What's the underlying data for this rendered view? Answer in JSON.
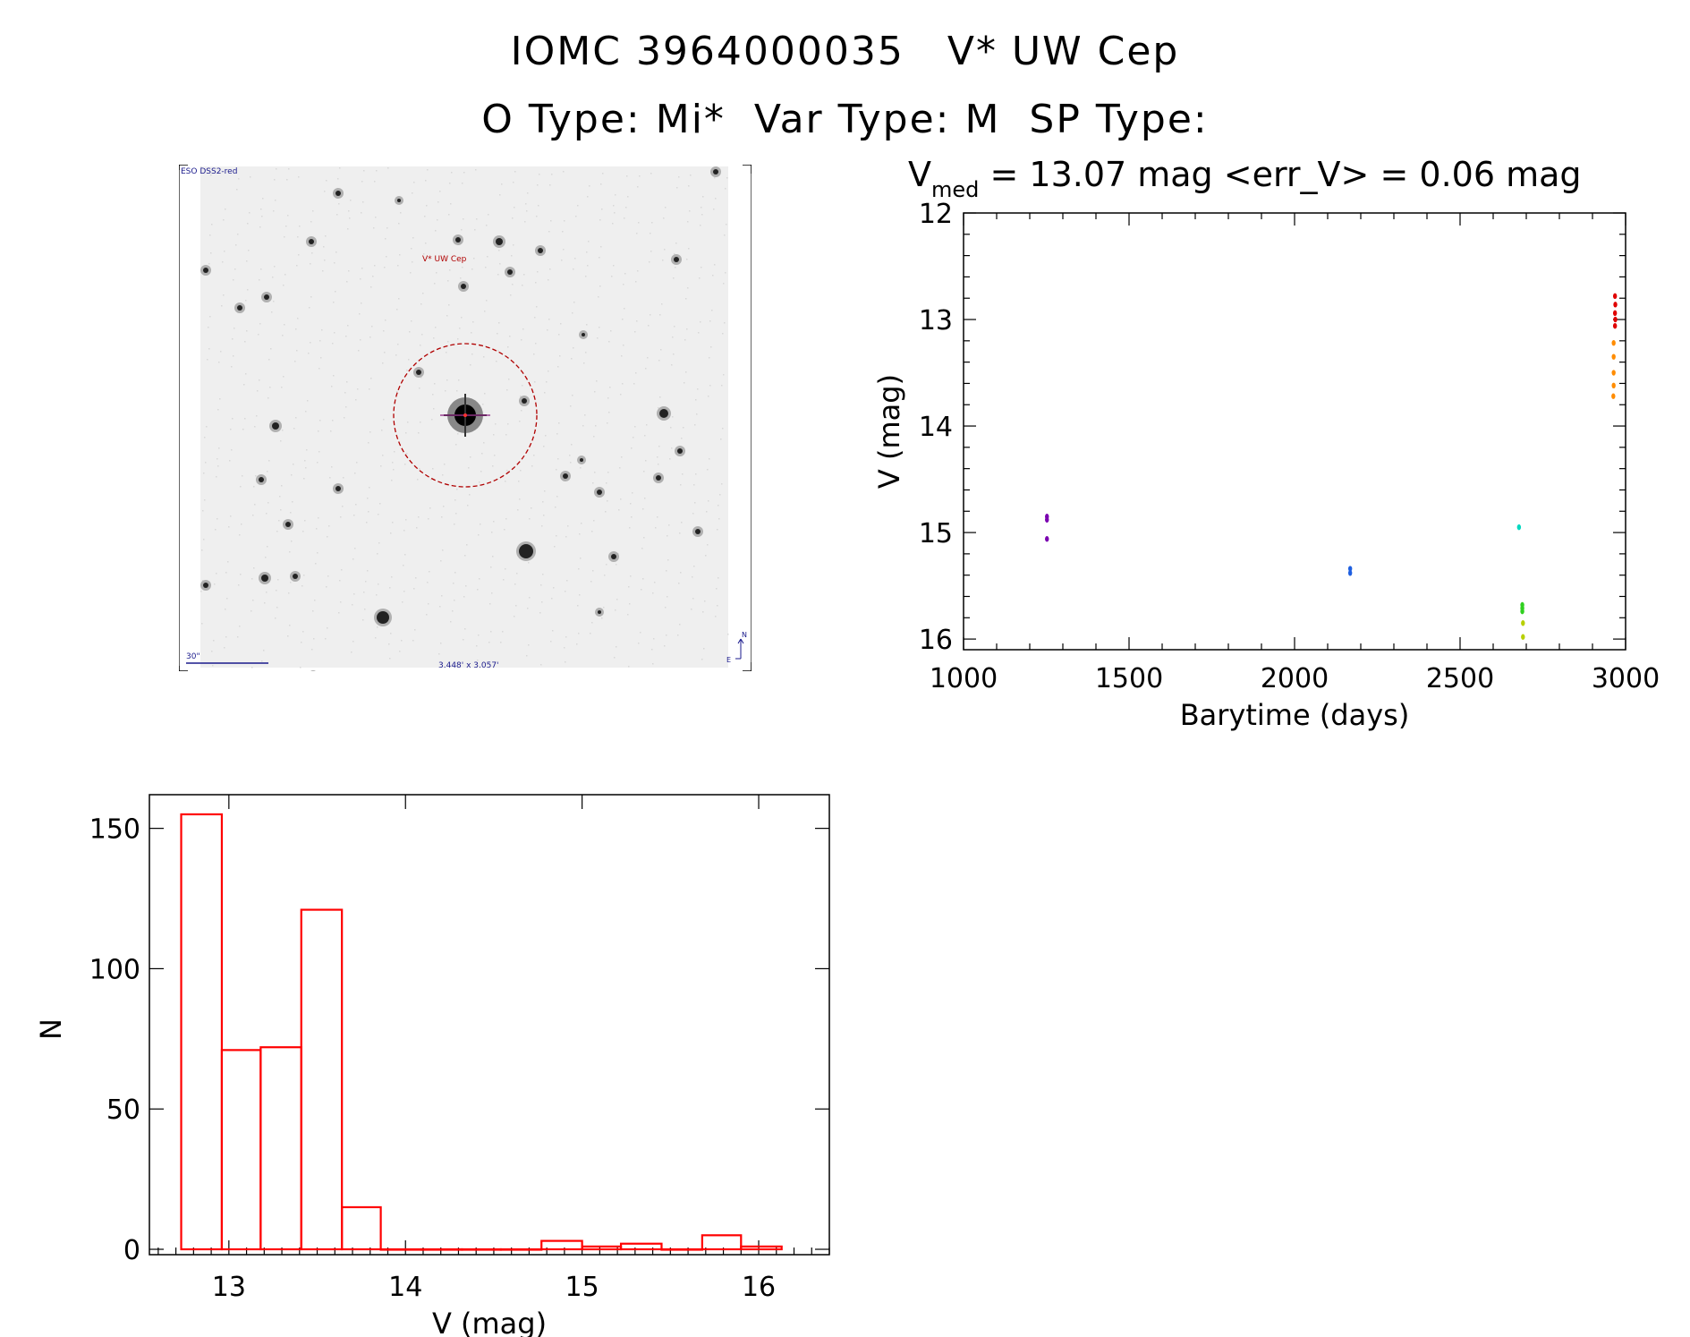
{
  "header": {
    "line1": "IOMC 3964000035   V* UW Cep",
    "line2": "O Type: Mi*  Var Type: M  SP Type:"
  },
  "thumbnail": {
    "survey_label": "ESO DSS2-red",
    "target_label": "V* UW Cep",
    "scale_label": "30\"",
    "fov_label": "3.448' x 3.057'",
    "compass_n": "N",
    "compass_e": "E",
    "circle_color": "#b00000"
  },
  "chart_data": [
    {
      "type": "scatter",
      "title_prefix": "V",
      "title_sub": "med",
      "title_rest": " = 13.07 mag <err_V> = 0.06 mag",
      "xlabel": "Barytime (days)",
      "ylabel": "V (mag)",
      "xlim": [
        1000,
        3000
      ],
      "ylim": [
        12,
        16.1
      ],
      "y_inverted": true,
      "xticks": [
        1000,
        1500,
        2000,
        2500,
        3000
      ],
      "yticks": [
        12,
        13,
        14,
        15,
        16
      ],
      "series": [
        {
          "color": "#7a00b0",
          "points": [
            [
              1252,
              14.85
            ],
            [
              1252,
              14.88
            ],
            [
              1252,
              15.06
            ]
          ]
        },
        {
          "color": "#1e5fe0",
          "points": [
            [
              2168,
              15.34
            ],
            [
              2168,
              15.38
            ]
          ]
        },
        {
          "color": "#00d8c0",
          "points": [
            [
              2678,
              14.95
            ]
          ]
        },
        {
          "color": "#30d020",
          "points": [
            [
              2688,
              15.68
            ],
            [
              2688,
              15.71
            ],
            [
              2688,
              15.74
            ]
          ]
        },
        {
          "color": "#b8d000",
          "points": [
            [
              2690,
              15.85
            ],
            [
              2690,
              15.98
            ]
          ]
        },
        {
          "color": "#ff8c00",
          "points": [
            [
              2964,
              13.22
            ],
            [
              2964,
              13.35
            ],
            [
              2964,
              13.5
            ],
            [
              2964,
              13.62
            ],
            [
              2963,
              13.72
            ]
          ]
        },
        {
          "color": "#e00000",
          "points": [
            [
              2968,
              12.78
            ],
            [
              2969,
              12.86
            ],
            [
              2968,
              12.94
            ],
            [
              2969,
              13.0
            ],
            [
              2968,
              13.06
            ]
          ]
        }
      ]
    },
    {
      "type": "histogram",
      "xlabel": "V (mag)",
      "ylabel": "N",
      "xlim": [
        12.55,
        16.4
      ],
      "ylim": [
        0,
        162
      ],
      "xticks": [
        13,
        14,
        15,
        16
      ],
      "yticks": [
        0,
        50,
        100,
        150
      ],
      "bar_color": "#ff0000",
      "bins": [
        {
          "x0": 12.73,
          "x1": 12.96,
          "n": 155
        },
        {
          "x0": 12.96,
          "x1": 13.18,
          "n": 71
        },
        {
          "x0": 13.18,
          "x1": 13.41,
          "n": 72
        },
        {
          "x0": 13.41,
          "x1": 13.64,
          "n": 121
        },
        {
          "x0": 13.64,
          "x1": 13.86,
          "n": 15
        },
        {
          "x0": 13.86,
          "x1": 14.09,
          "n": 0
        },
        {
          "x0": 14.09,
          "x1": 14.32,
          "n": 0
        },
        {
          "x0": 14.32,
          "x1": 14.54,
          "n": 0
        },
        {
          "x0": 14.54,
          "x1": 14.77,
          "n": 0
        },
        {
          "x0": 14.77,
          "x1": 15.0,
          "n": 3
        },
        {
          "x0": 15.0,
          "x1": 15.22,
          "n": 1
        },
        {
          "x0": 15.22,
          "x1": 15.45,
          "n": 2
        },
        {
          "x0": 15.45,
          "x1": 15.68,
          "n": 0
        },
        {
          "x0": 15.68,
          "x1": 15.9,
          "n": 5
        },
        {
          "x0": 15.9,
          "x1": 16.13,
          "n": 1
        }
      ]
    }
  ]
}
